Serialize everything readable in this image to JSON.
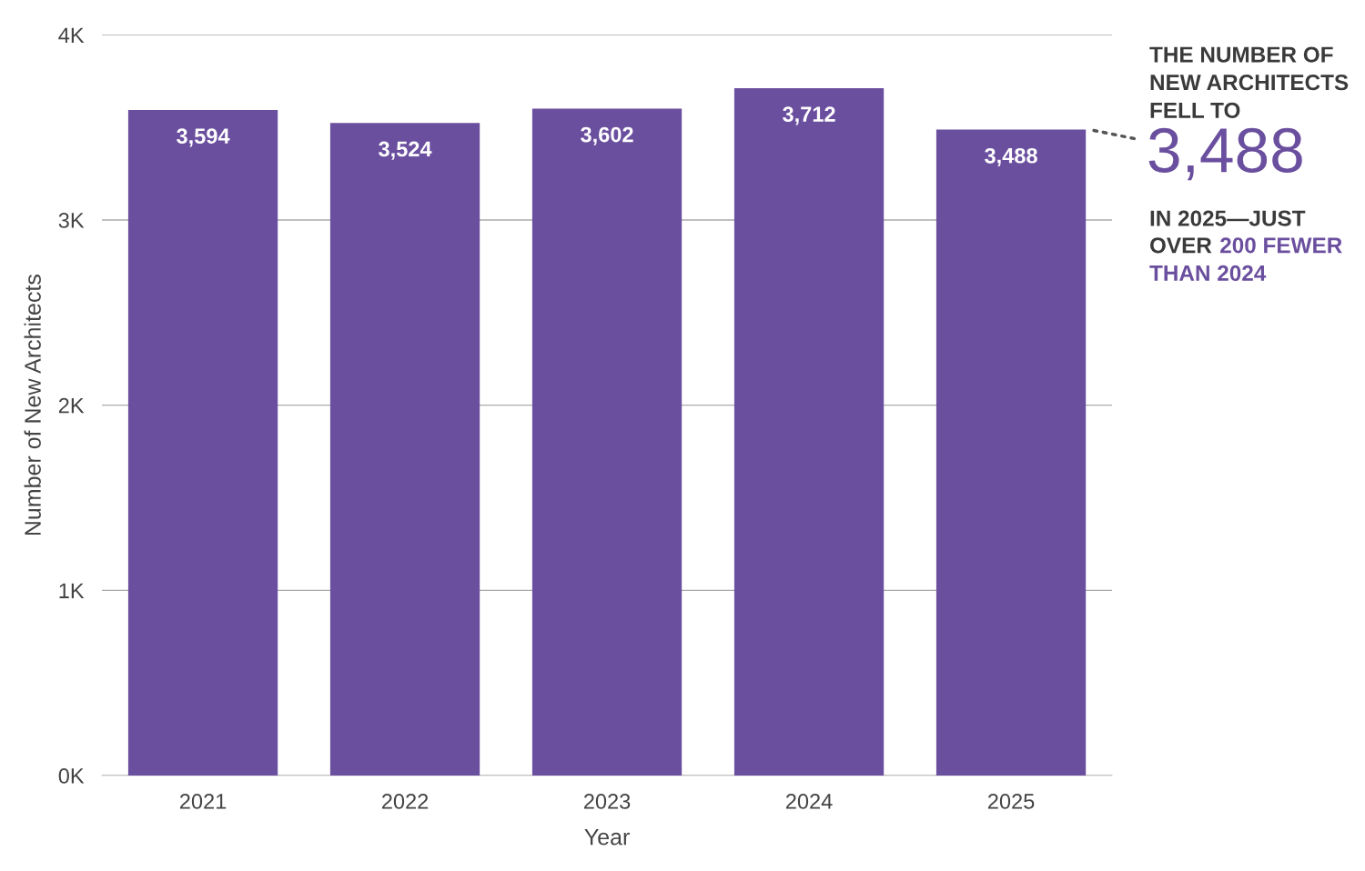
{
  "chart_data": {
    "type": "bar",
    "xlabel": "Year",
    "ylabel": "Number of New Architects",
    "categories": [
      "2021",
      "2022",
      "2023",
      "2024",
      "2025"
    ],
    "values": [
      3594,
      3524,
      3602,
      3712,
      3488
    ],
    "color": "#6b4f9f",
    "ylim": [
      0,
      4000
    ],
    "yticks": [
      {
        "value": 0,
        "label": "0K"
      },
      {
        "value": 1000,
        "label": "1K"
      },
      {
        "value": 2000,
        "label": "2K"
      },
      {
        "value": 3000,
        "label": "3K"
      },
      {
        "value": 4000,
        "label": "4K"
      }
    ],
    "grid": "y",
    "value_labels": [
      "3,594",
      "3,524",
      "3,602",
      "3,712",
      "3,488"
    ],
    "annotations": [
      "THE NUMBER OF",
      "NEW ARCHITECTS",
      "FELL TO",
      {
        "text": "3,488",
        "x": "2025",
        "y": 3488
      },
      "IN 2025—JUST",
      "OVER",
      "200 FEWER",
      "THAN 2024"
    ]
  }
}
